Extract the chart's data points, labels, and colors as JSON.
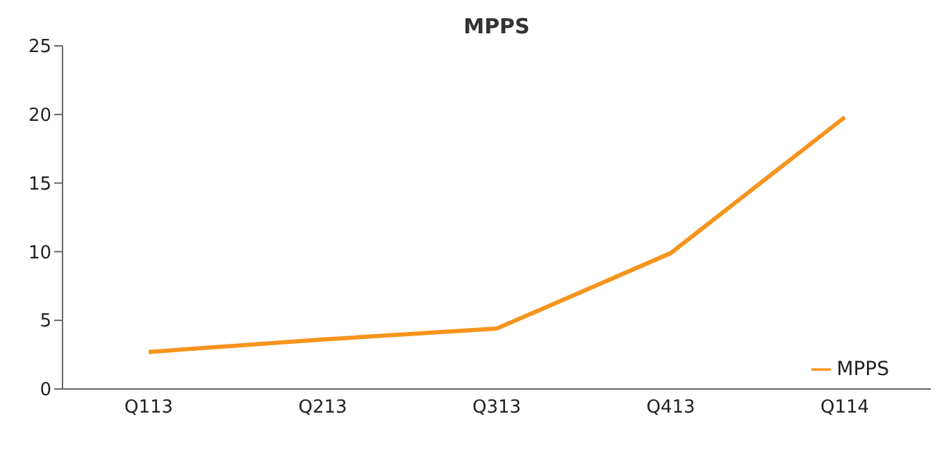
{
  "chart_data": {
    "type": "line",
    "title": "MPPS",
    "categories": [
      "Q113",
      "Q213",
      "Q313",
      "Q413",
      "Q114"
    ],
    "series": [
      {
        "name": "MPPS",
        "color": "#f7941d",
        "values": [
          2.7,
          3.6,
          4.4,
          9.9,
          19.8
        ]
      }
    ],
    "ylim": [
      0,
      25
    ],
    "yticks": [
      0,
      5,
      10,
      15,
      20,
      25
    ],
    "grid": false,
    "legend": "bottom right",
    "marker": "none",
    "line_style": "solid"
  }
}
